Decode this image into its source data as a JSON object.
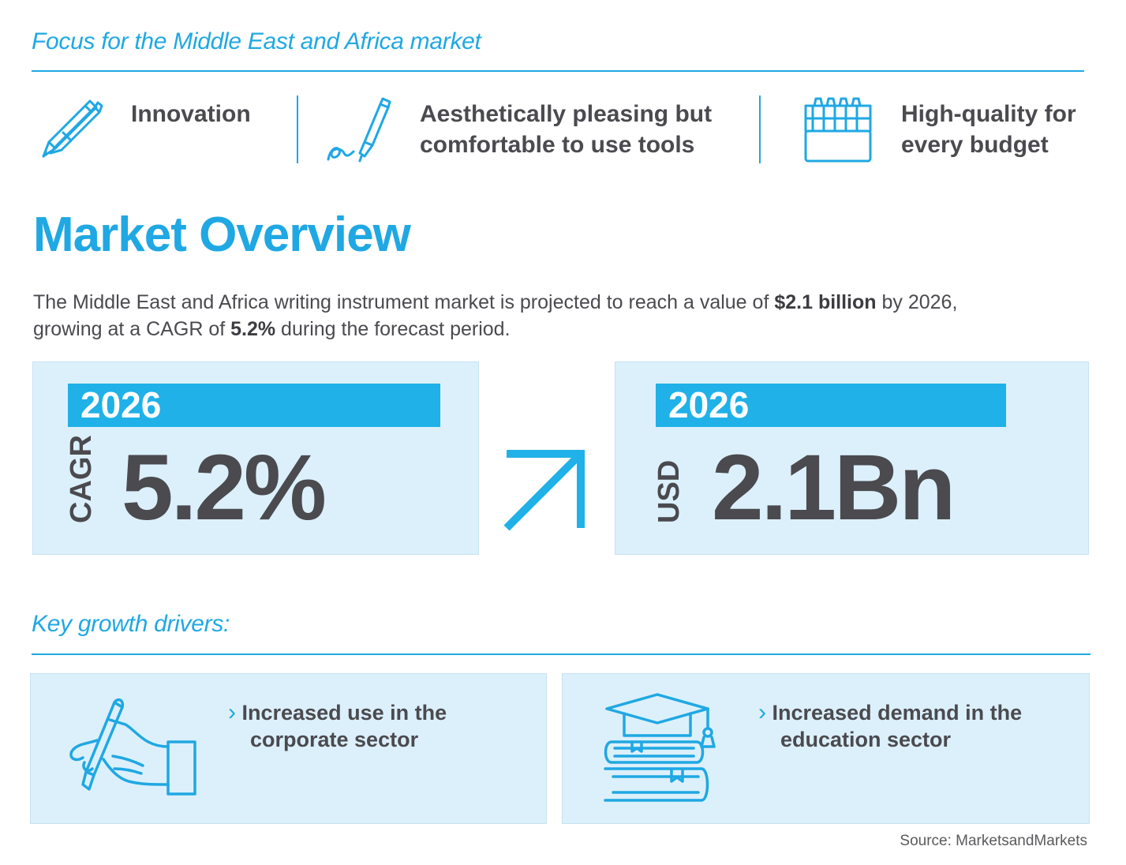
{
  "header": {
    "focus_title": "Focus for the Middle East and Africa market"
  },
  "features": [
    {
      "icon": "pens-icon",
      "label_line1": "Innovation",
      "label_line2": ""
    },
    {
      "icon": "pen-signature-icon",
      "label_line1": "Aesthetically pleasing but",
      "label_line2": "comfortable to use tools"
    },
    {
      "icon": "markers-box-icon",
      "label_line1": "High-quality for",
      "label_line2": "every budget"
    }
  ],
  "overview": {
    "title": "Market Overview",
    "desc_part1": "The Middle East and Africa writing instrument market is projected to reach a value of ",
    "desc_value": "$2.1 billion",
    "desc_part2": " by 2026,",
    "desc_part3": "growing at a CAGR of ",
    "desc_cagr": "5.2%",
    "desc_part4": " during the forecast period."
  },
  "stats": {
    "cagr": {
      "year": "2026",
      "label": "CAGR",
      "value": "5.2%"
    },
    "usd": {
      "year": "2026",
      "label": "USD",
      "value": "2.1Bn"
    }
  },
  "drivers": {
    "title": "Key growth drivers:",
    "items": [
      {
        "icon": "hand-writing-icon",
        "line1": "Increased use in the",
        "line2": "corporate sector"
      },
      {
        "icon": "graduation-books-icon",
        "line1": "Increased demand in the",
        "line2": "education sector"
      }
    ]
  },
  "source": "Source: MarketsandMarkets",
  "colors": {
    "accent": "#1fa8e3",
    "card_bg": "#dcf0fb",
    "text": "#4a4a4f"
  }
}
